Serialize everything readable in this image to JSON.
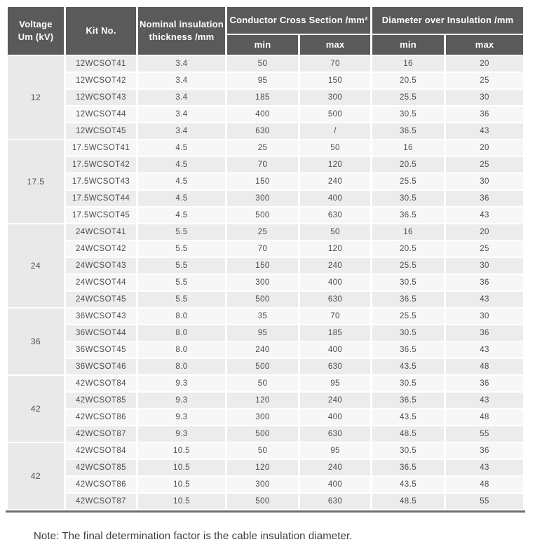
{
  "colors": {
    "header_bg": "#5a5a5a",
    "header_text": "#ffffff",
    "row_odd": "#ececec",
    "row_even": "#f7f7f7",
    "voltage_bg": "#e9e9e9",
    "data_text": "#4d4d4d",
    "border_color": "#6f6f6f",
    "note_text": "#3c3c3c"
  },
  "table": {
    "header": {
      "voltage_line1": "Voltage",
      "voltage_line2": "Um (kV)",
      "kit_no": "Kit No.",
      "nominal_line1": "Nominal insulation",
      "nominal_line2": "thickness /mm",
      "conductor_group": "Conductor Cross Section /mm²",
      "diameter_group": "Diameter over Insulation /mm",
      "min": "min",
      "max": "max"
    },
    "row_fields": [
      "kit_no",
      "nominal_insulation_thickness_mm",
      "cross_section_min",
      "cross_section_max",
      "diameter_min",
      "diameter_max"
    ],
    "groups": [
      {
        "voltage": "12",
        "rows": [
          [
            "12WCSOT41",
            "3.4",
            "50",
            "70",
            "16",
            "20"
          ],
          [
            "12WCSOT42",
            "3.4",
            "95",
            "150",
            "20.5",
            "25"
          ],
          [
            "12WCSOT43",
            "3.4",
            "185",
            "300",
            "25.5",
            "30"
          ],
          [
            "12WCSOT44",
            "3.4",
            "400",
            "500",
            "30.5",
            "36"
          ],
          [
            "12WCSOT45",
            "3.4",
            "630",
            "/",
            "36.5",
            "43"
          ]
        ]
      },
      {
        "voltage": "17.5",
        "rows": [
          [
            "17.5WCSOT41",
            "4.5",
            "25",
            "50",
            "16",
            "20"
          ],
          [
            "17.5WCSOT42",
            "4.5",
            "70",
            "120",
            "20.5",
            "25"
          ],
          [
            "17.5WCSOT43",
            "4.5",
            "150",
            "240",
            "25.5",
            "30"
          ],
          [
            "17.5WCSOT44",
            "4.5",
            "300",
            "400",
            "30.5",
            "36"
          ],
          [
            "17.5WCSOT45",
            "4.5",
            "500",
            "630",
            "36.5",
            "43"
          ]
        ]
      },
      {
        "voltage": "24",
        "rows": [
          [
            "24WCSOT41",
            "5.5",
            "25",
            "50",
            "16",
            "20"
          ],
          [
            "24WCSOT42",
            "5.5",
            "70",
            "120",
            "20.5",
            "25"
          ],
          [
            "24WCSOT43",
            "5.5",
            "150",
            "240",
            "25.5",
            "30"
          ],
          [
            "24WCSOT44",
            "5.5",
            "300",
            "400",
            "30.5",
            "36"
          ],
          [
            "24WCSOT45",
            "5.5",
            "500",
            "630",
            "36.5",
            "43"
          ]
        ]
      },
      {
        "voltage": "36",
        "rows": [
          [
            "36WCSOT43",
            "8.0",
            "35",
            "70",
            "25.5",
            "30"
          ],
          [
            "36WCSOT44",
            "8.0",
            "95",
            "185",
            "30.5",
            "36"
          ],
          [
            "36WCSOT45",
            "8.0",
            "240",
            "400",
            "36.5",
            "43"
          ],
          [
            "36WCSOT46",
            "8.0",
            "500",
            "630",
            "43.5",
            "48"
          ]
        ]
      },
      {
        "voltage": "42",
        "rows": [
          [
            "42WCSOT84",
            "9.3",
            "50",
            "95",
            "30.5",
            "36"
          ],
          [
            "42WCSOT85",
            "9.3",
            "120",
            "240",
            "36.5",
            "43"
          ],
          [
            "42WCSOT86",
            "9.3",
            "300",
            "400",
            "43.5",
            "48"
          ],
          [
            "42WCSOT87",
            "9.3",
            "500",
            "630",
            "48.5",
            "55"
          ]
        ]
      },
      {
        "voltage": "42",
        "rows": [
          [
            "42WCSOT84",
            "10.5",
            "50",
            "95",
            "30.5",
            "36"
          ],
          [
            "42WCSOT85",
            "10.5",
            "120",
            "240",
            "36.5",
            "43"
          ],
          [
            "42WCSOT86",
            "10.5",
            "300",
            "400",
            "43.5",
            "48"
          ],
          [
            "42WCSOT87",
            "10.5",
            "500",
            "630",
            "48.5",
            "55"
          ]
        ]
      }
    ]
  },
  "note": "Note: The final determination factor is the cable insulation diameter."
}
